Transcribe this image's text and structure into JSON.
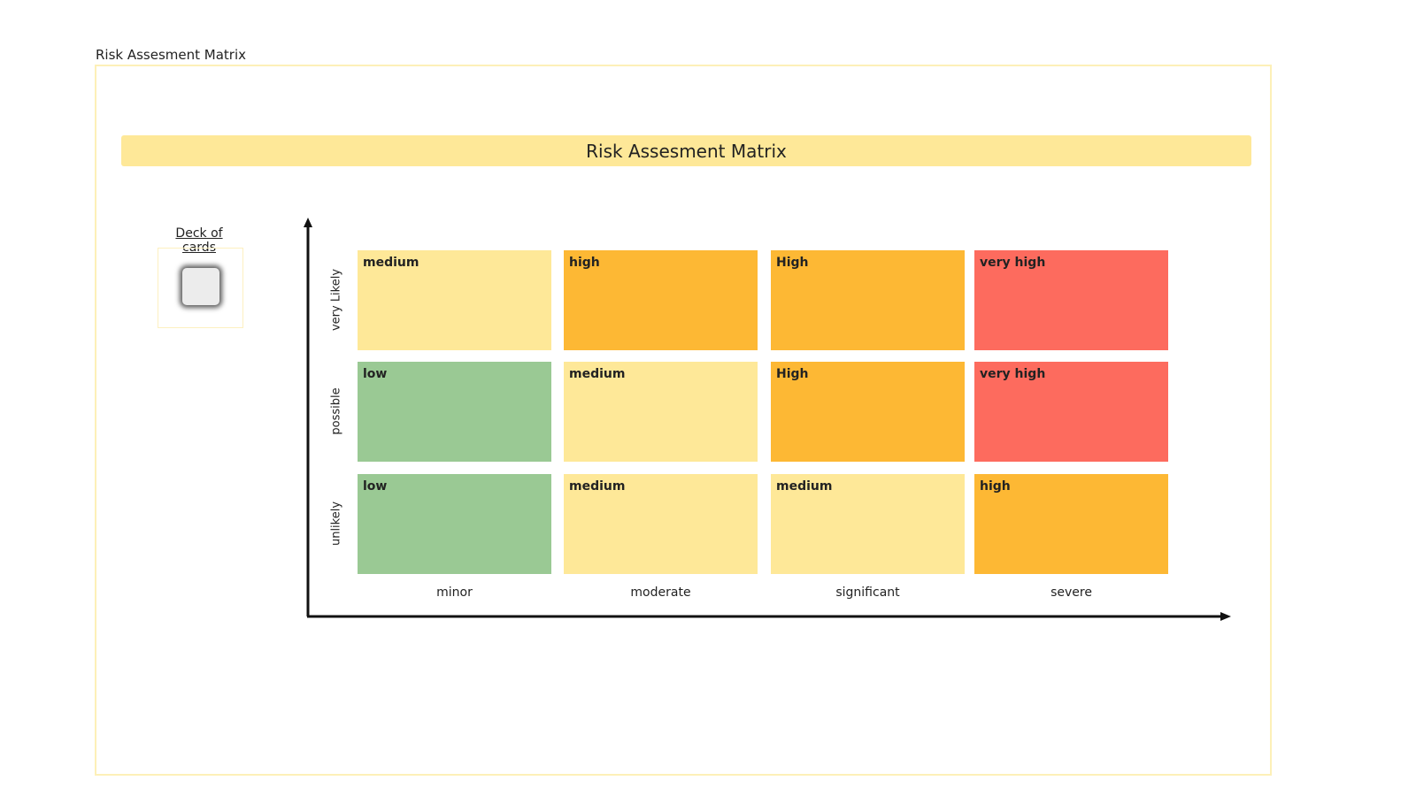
{
  "frame_title": "Risk Assesment Matrix",
  "title": "Risk Assesment Matrix",
  "deck": {
    "label": "Deck of cards",
    "icon": "card-icon"
  },
  "rows": [
    {
      "label": "very Likely",
      "cells": [
        {
          "text": "medium",
          "color": "#fee898"
        },
        {
          "text": "high",
          "color": "#fdb834"
        },
        {
          "text": "High",
          "color": "#fdb834"
        },
        {
          "text": "very high",
          "color": "#fd6b5e"
        }
      ]
    },
    {
      "label": "possible",
      "cells": [
        {
          "text": "low",
          "color": "#9ac994"
        },
        {
          "text": "medium",
          "color": "#fee898"
        },
        {
          "text": "High",
          "color": "#fdb834"
        },
        {
          "text": "very high",
          "color": "#fd6b5e"
        }
      ]
    },
    {
      "label": "unlikely",
      "cells": [
        {
          "text": "low",
          "color": "#9ac994"
        },
        {
          "text": "medium",
          "color": "#fee898"
        },
        {
          "text": "medium",
          "color": "#fee898"
        },
        {
          "text": "high",
          "color": "#fdb834"
        }
      ]
    }
  ],
  "columns": [
    "minor",
    "moderate",
    "significant",
    "severe"
  ]
}
